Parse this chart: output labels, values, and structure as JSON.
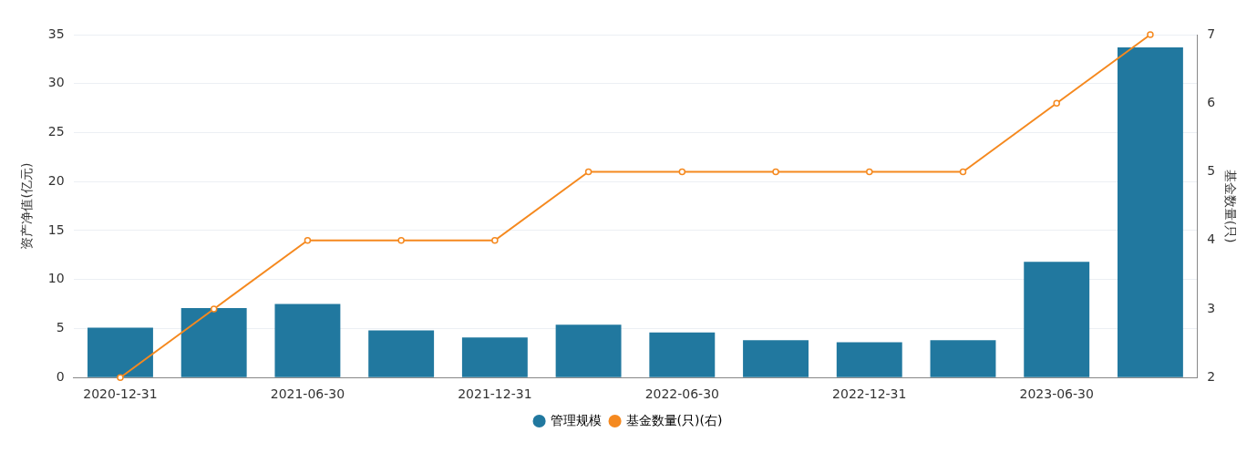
{
  "chart_data": {
    "type": "bar",
    "ylabel": "资产净值(亿元)",
    "y2label": "基金数量(只)",
    "categories": [
      "2020-12-31",
      null,
      "2021-06-30",
      null,
      "2021-12-31",
      null,
      "2022-06-30",
      null,
      "2022-12-31",
      null,
      "2023-06-30",
      null
    ],
    "series": [
      {
        "name": "管理规模",
        "color": "#21789f",
        "values": [
          5.1,
          7.1,
          7.5,
          4.8,
          4.1,
          5.4,
          4.6,
          3.8,
          3.6,
          3.8,
          11.8,
          33.7
        ]
      },
      {
        "name": "基金数量(只)(右)",
        "type": "line",
        "axis": "y2",
        "color": "#f5891f",
        "values": [
          2,
          3,
          4,
          4,
          4,
          5,
          5,
          5,
          5,
          5,
          6,
          7
        ]
      }
    ],
    "ylim": [
      0,
      35
    ],
    "yticks": [
      0,
      5,
      10,
      15,
      20,
      25,
      30,
      35
    ],
    "y2lim": [
      2,
      7
    ],
    "y2ticks": [
      2,
      3,
      4,
      5,
      6,
      7
    ],
    "grid": "y",
    "legend": "bottom",
    "marker": "circle",
    "line_style": "solid"
  }
}
